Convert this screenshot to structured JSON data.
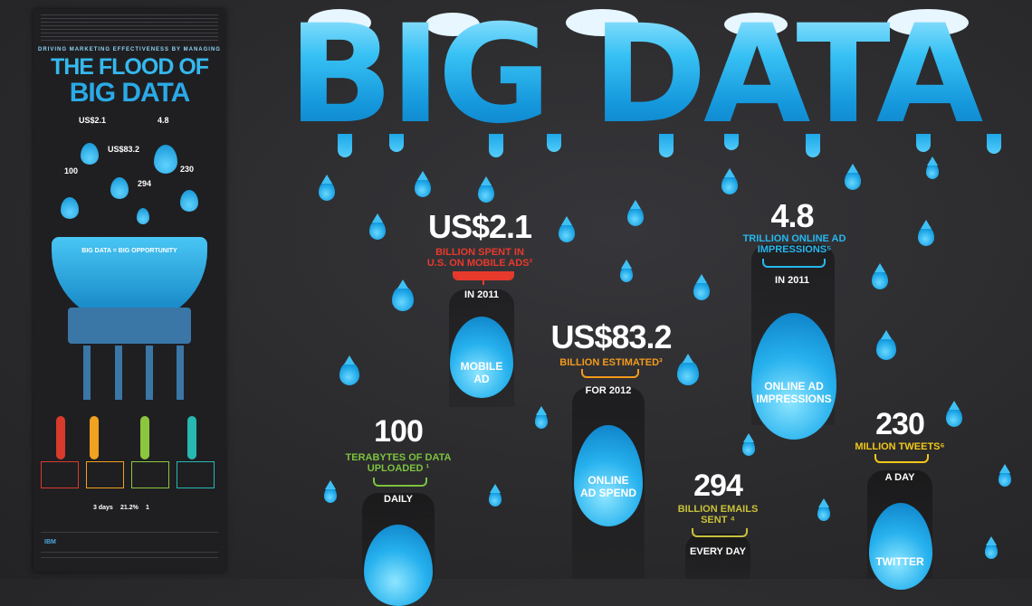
{
  "thumbnail": {
    "subtitle": "DRIVING MARKETING EFFECTIVENESS BY MANAGING",
    "title_line1": "THE FLOOD OF",
    "title_line2": "BIG DATA",
    "mini_stats": [
      "US$2.1",
      "4.8",
      "US$83.2",
      "100",
      "230",
      "294"
    ],
    "bowl_label": "BIG DATA = BIG OPPORTUNITY",
    "footer_logo": "IBM",
    "bottom_stats": [
      "3 days",
      "21.2%",
      "1"
    ]
  },
  "title": "BIG DATA",
  "stats": [
    {
      "number": "US$2.1",
      "desc_lines": [
        "BILLION SPENT IN",
        "U.S. ON MOBILE ADS²"
      ],
      "period": "IN 2011",
      "drop_label": [
        "MOBILE",
        "AD"
      ],
      "color": "#e8392d"
    },
    {
      "number": "4.8",
      "desc_lines": [
        "TRILLION ONLINE AD",
        "IMPRESSIONS⁵"
      ],
      "period": "IN 2011",
      "drop_label": [
        "ONLINE AD",
        "IMPRESSIONS"
      ],
      "color": "#27b7ee"
    },
    {
      "number": "US$83.2",
      "desc_lines": [
        "BILLION ESTIMATED³"
      ],
      "period": "FOR 2012",
      "drop_label": [
        "ONLINE",
        "AD SPEND"
      ],
      "color": "#f39a1c"
    },
    {
      "number": "100",
      "desc_lines": [
        "TERABYTES OF DATA",
        "UPLOADED ¹"
      ],
      "period": "DAILY",
      "drop_label": [],
      "color": "#7cc23f"
    },
    {
      "number": "294",
      "desc_lines": [
        "BILLION EMAILS",
        "SENT ⁴"
      ],
      "period": "EVERY DAY",
      "drop_label": [],
      "color": "#c8c13a"
    },
    {
      "number": "230",
      "desc_lines": [
        "MILLION TWEETS⁶"
      ],
      "period": "A DAY",
      "drop_label": [
        "TWITTER"
      ],
      "color": "#f2c818"
    }
  ]
}
